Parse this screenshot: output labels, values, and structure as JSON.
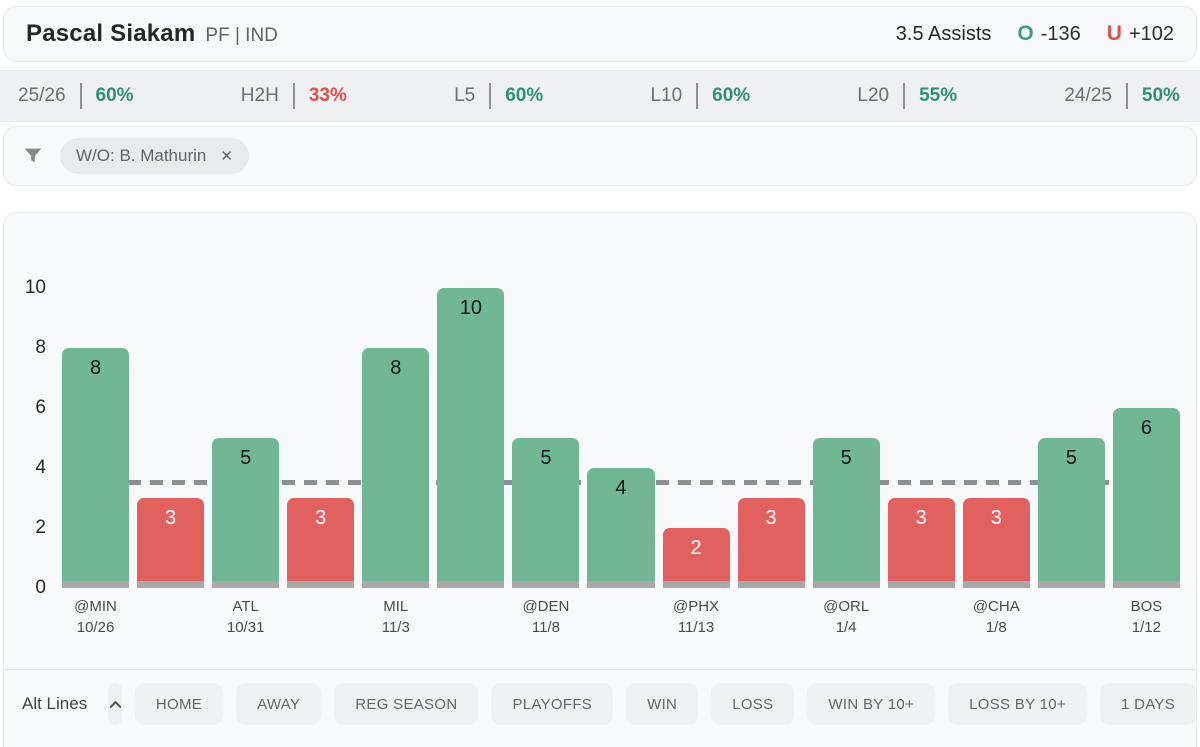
{
  "header": {
    "player_name": "Pascal Siakam",
    "position_team": "PF | IND",
    "prop_line": "3.5 Assists",
    "over_label": "O",
    "over_odds": "-136",
    "under_label": "U",
    "under_odds": "+102"
  },
  "colors": {
    "over_green": "#72b795",
    "under_red": "#e0615e",
    "green_text": "#2e9070",
    "red_text": "#e14f4a",
    "bar_stub_gray": "#a8a8a8",
    "ref_line_gray": "#8b9095"
  },
  "stats": [
    {
      "label": "25/26",
      "value": "60%",
      "color": "green_text"
    },
    {
      "label": "H2H",
      "value": "33%",
      "color": "red_text"
    },
    {
      "label": "L5",
      "value": "60%",
      "color": "green_text"
    },
    {
      "label": "L10",
      "value": "60%",
      "color": "green_text"
    },
    {
      "label": "L20",
      "value": "55%",
      "color": "green_text"
    },
    {
      "label": "24/25",
      "value": "50%",
      "color": "green_text"
    }
  ],
  "filter": {
    "chip_label": "W/O: B. Mathurin",
    "chip_close": "✕"
  },
  "chart_data": {
    "type": "bar",
    "title": "",
    "xlabel": "",
    "ylabel": "",
    "ylim": [
      0,
      10
    ],
    "yticks": [
      0,
      2,
      4,
      6,
      8,
      10
    ],
    "grid": false,
    "legend": false,
    "reference_line": 3.5,
    "values": [
      8,
      3,
      5,
      3,
      8,
      10,
      5,
      4,
      2,
      3,
      5,
      3,
      3,
      5,
      6
    ],
    "bars": [
      {
        "value": 8,
        "result": "over",
        "team": "@MIN",
        "date": "10/26"
      },
      {
        "value": 3,
        "result": "under",
        "team": "",
        "date": ""
      },
      {
        "value": 5,
        "result": "over",
        "team": "ATL",
        "date": "10/31"
      },
      {
        "value": 3,
        "result": "under",
        "team": "",
        "date": ""
      },
      {
        "value": 8,
        "result": "over",
        "team": "MIL",
        "date": "11/3"
      },
      {
        "value": 10,
        "result": "over",
        "team": "",
        "date": ""
      },
      {
        "value": 5,
        "result": "over",
        "team": "@DEN",
        "date": "11/8"
      },
      {
        "value": 4,
        "result": "over",
        "team": "",
        "date": ""
      },
      {
        "value": 2,
        "result": "under",
        "team": "@PHX",
        "date": "11/13"
      },
      {
        "value": 3,
        "result": "under",
        "team": "",
        "date": ""
      },
      {
        "value": 5,
        "result": "over",
        "team": "@ORL",
        "date": "1/4"
      },
      {
        "value": 3,
        "result": "under",
        "team": "",
        "date": ""
      },
      {
        "value": 3,
        "result": "under",
        "team": "@CHA",
        "date": "1/8"
      },
      {
        "value": 5,
        "result": "over",
        "team": "",
        "date": ""
      },
      {
        "value": 6,
        "result": "over",
        "team": "BOS",
        "date": "1/12"
      }
    ]
  },
  "toolbar": {
    "alt_lines_label": "Alt Lines",
    "buttons": [
      "HOME",
      "AWAY",
      "REG SEASON",
      "PLAYOFFS",
      "WIN",
      "LOSS",
      "WIN BY 10+",
      "LOSS BY 10+",
      "1 DAYS"
    ]
  }
}
